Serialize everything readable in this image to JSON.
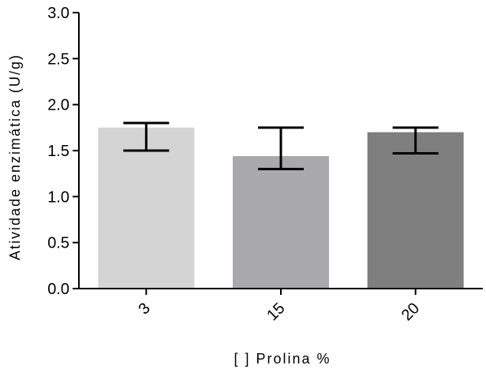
{
  "chart_data": {
    "type": "bar",
    "title": "",
    "xlabel": "[ ] Prolina %",
    "ylabel": "Atividade enzimática (U/g)",
    "categories": [
      "3",
      "15",
      "20"
    ],
    "values": [
      1.75,
      1.44,
      1.7
    ],
    "error_upper": [
      1.8,
      1.75,
      1.75
    ],
    "error_lower": [
      1.5,
      1.3,
      1.47
    ],
    "bar_colors": [
      "#d4d4d4",
      "#a9a9ad",
      "#7f7f7f"
    ],
    "ylim": [
      0,
      3.0
    ],
    "yticks": [
      "0.0",
      "0.5",
      "1.0",
      "1.5",
      "2.0",
      "2.5",
      "3.0"
    ],
    "grid": false,
    "legend": "none"
  }
}
